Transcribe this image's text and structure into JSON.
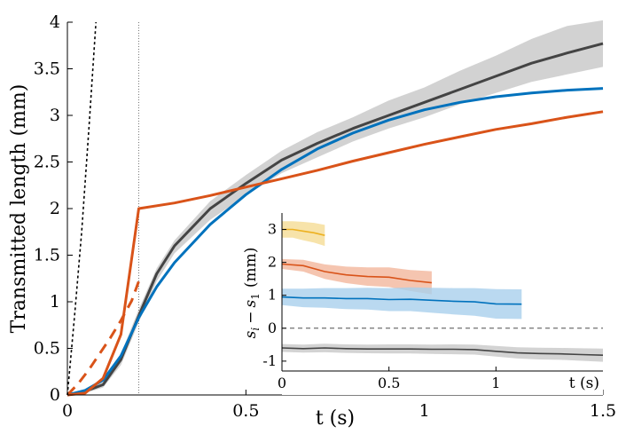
{
  "chart_data": [
    {
      "type": "line",
      "title": "",
      "xlabel": "t (s)",
      "ylabel": "Transmitted length (mm)",
      "xlim": [
        0,
        1.5
      ],
      "ylim": [
        0,
        4
      ],
      "xticks": [
        "0",
        "0.5",
        "1",
        "1.5"
      ],
      "yticks": [
        "0",
        "0.5",
        "1",
        "1.5",
        "2",
        "2.5",
        "3",
        "3.5",
        "4"
      ],
      "grid": false,
      "vline_x": 0.2,
      "band": {
        "color": "#b4b4b4",
        "x": [
          0,
          0.05,
          0.1,
          0.15,
          0.2,
          0.25,
          0.3,
          0.4,
          0.5,
          0.6,
          0.7,
          0.8,
          0.9,
          1.0,
          1.1,
          1.2,
          1.3,
          1.4,
          1.5
        ],
        "lower": [
          0,
          0.02,
          0.08,
          0.32,
          0.78,
          1.22,
          1.52,
          1.88,
          2.14,
          2.38,
          2.55,
          2.72,
          2.86,
          2.98,
          3.12,
          3.24,
          3.36,
          3.44,
          3.52
        ],
        "upper": [
          0,
          0.06,
          0.14,
          0.44,
          0.92,
          1.36,
          1.66,
          2.08,
          2.36,
          2.62,
          2.82,
          2.98,
          3.16,
          3.3,
          3.48,
          3.64,
          3.82,
          3.96,
          4.02
        ]
      },
      "series": [
        {
          "color": "#444444",
          "dash": "solid",
          "x": [
            0,
            0.05,
            0.1,
            0.15,
            0.2,
            0.25,
            0.3,
            0.4,
            0.5,
            0.6,
            0.7,
            0.8,
            0.9,
            1.0,
            1.1,
            1.2,
            1.3,
            1.4,
            1.5
          ],
          "y": [
            0,
            0.04,
            0.11,
            0.38,
            0.85,
            1.3,
            1.6,
            2.0,
            2.27,
            2.52,
            2.7,
            2.86,
            3.0,
            3.14,
            3.28,
            3.42,
            3.56,
            3.67,
            3.77
          ]
        },
        {
          "color": "#0072bd",
          "dash": "solid",
          "x": [
            0,
            0.05,
            0.1,
            0.15,
            0.2,
            0.25,
            0.3,
            0.4,
            0.5,
            0.6,
            0.7,
            0.8,
            0.9,
            1.0,
            1.1,
            1.2,
            1.3,
            1.4,
            1.5
          ],
          "y": [
            0,
            0.05,
            0.16,
            0.42,
            0.83,
            1.16,
            1.42,
            1.83,
            2.15,
            2.42,
            2.64,
            2.81,
            2.95,
            3.06,
            3.14,
            3.2,
            3.24,
            3.27,
            3.29
          ]
        },
        {
          "color": "#d95319",
          "dash": "solid",
          "x": [
            0,
            0.05,
            0.1,
            0.15,
            0.2,
            0.3,
            0.4,
            0.5,
            0.6,
            0.7,
            0.8,
            0.9,
            1.0,
            1.1,
            1.2,
            1.3,
            1.4,
            1.5
          ],
          "y": [
            0,
            0.02,
            0.18,
            0.65,
            2.0,
            2.06,
            2.14,
            2.23,
            2.32,
            2.41,
            2.51,
            2.6,
            2.69,
            2.77,
            2.85,
            2.91,
            2.98,
            3.04
          ]
        },
        {
          "color": "#d95319",
          "dash": "dashed",
          "x": [
            0,
            0.03,
            0.06,
            0.09,
            0.12,
            0.15,
            0.18,
            0.2
          ],
          "y": [
            0,
            0.12,
            0.27,
            0.44,
            0.61,
            0.8,
            1.01,
            1.22
          ]
        },
        {
          "color": "#000000",
          "dash": "dotted",
          "x": [
            0,
            0.02,
            0.04,
            0.06,
            0.08
          ],
          "y": [
            0,
            0.85,
            1.75,
            2.85,
            4.0
          ]
        }
      ]
    },
    {
      "type": "line",
      "title": "",
      "xlabel": "t (s)",
      "ylabel": "s_i − s_1 (mm)",
      "ylabel_main": "s",
      "ylabel_sub_i": "i",
      "ylabel_minus": "−",
      "ylabel_s1": "s",
      "ylabel_sub_1": "1",
      "ylabel_unit": "(mm)",
      "xlim": [
        0,
        1.5
      ],
      "ylim": [
        -1.3,
        3.5
      ],
      "xticks": [
        "0",
        "0.5",
        "1"
      ],
      "yticks": [
        "-1",
        "0",
        "1",
        "2",
        "3"
      ],
      "zero_line": true,
      "series": [
        {
          "color": "#edb120",
          "band_color": "#f5dc95",
          "x": [
            0,
            0.05,
            0.1,
            0.15,
            0.2
          ],
          "y": [
            3.0,
            3.0,
            2.95,
            2.9,
            2.82
          ],
          "err": [
            0.25,
            0.25,
            0.28,
            0.3,
            0.32
          ]
        },
        {
          "color": "#d95319",
          "band_color": "#f2b79c",
          "x": [
            0,
            0.1,
            0.2,
            0.3,
            0.4,
            0.5,
            0.6,
            0.7
          ],
          "y": [
            1.95,
            1.9,
            1.72,
            1.62,
            1.57,
            1.55,
            1.45,
            1.38
          ],
          "err": [
            0.15,
            0.18,
            0.22,
            0.25,
            0.28,
            0.3,
            0.32,
            0.35
          ]
        },
        {
          "color": "#0072bd",
          "band_color": "#a9cfec",
          "x": [
            0,
            0.1,
            0.2,
            0.3,
            0.4,
            0.5,
            0.6,
            0.7,
            0.8,
            0.9,
            1.0,
            1.12
          ],
          "y": [
            0.95,
            0.92,
            0.92,
            0.9,
            0.9,
            0.87,
            0.88,
            0.85,
            0.82,
            0.8,
            0.74,
            0.73
          ],
          "err": [
            0.25,
            0.28,
            0.3,
            0.32,
            0.33,
            0.35,
            0.36,
            0.38,
            0.4,
            0.42,
            0.45,
            0.45
          ]
        },
        {
          "color": "#444444",
          "band_color": "#c8c8c8",
          "x": [
            0,
            0.1,
            0.2,
            0.3,
            0.4,
            0.5,
            0.6,
            0.7,
            0.8,
            0.9,
            1.0,
            1.1,
            1.2,
            1.3,
            1.4,
            1.5
          ],
          "y": [
            -0.6,
            -0.62,
            -0.6,
            -0.62,
            -0.63,
            -0.63,
            -0.63,
            -0.64,
            -0.64,
            -0.65,
            -0.7,
            -0.75,
            -0.77,
            -0.78,
            -0.8,
            -0.82
          ],
          "err": [
            0.12,
            0.12,
            0.13,
            0.13,
            0.13,
            0.14,
            0.14,
            0.14,
            0.15,
            0.15,
            0.16,
            0.17,
            0.18,
            0.18,
            0.19,
            0.2
          ]
        }
      ]
    }
  ]
}
